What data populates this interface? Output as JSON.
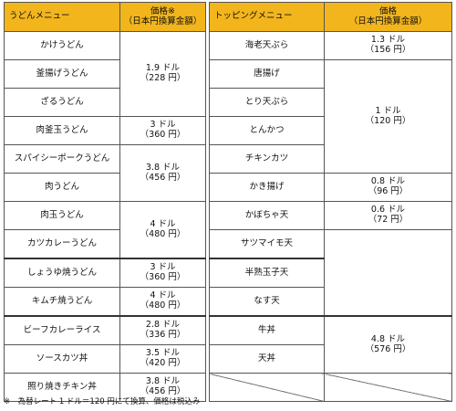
{
  "headers": {
    "udon_menu": "うどんメニュー",
    "price": "価格※",
    "price_sub": "（日本円換算金額）",
    "topping_menu": "トッピングメニュー",
    "topping_price": "価格",
    "topping_price_sub": "（日本円換算金額）"
  },
  "udon": {
    "items": [
      "かけうどん",
      "釜揚げうどん",
      "ざるうどん",
      "肉釜玉うどん",
      "スパイシーポークうどん",
      "肉うどん",
      "肉玉うどん",
      "カツカレーうどん",
      "しょうゆ焼うどん",
      "キムチ焼うどん",
      "ビーフカレーライス",
      "ソースカツ丼",
      "照り焼きチキン丼"
    ],
    "prices": [
      {
        "usd": "1.9 ドル",
        "yen": "（228 円）"
      },
      {
        "usd": "3 ドル",
        "yen": "（360 円）"
      },
      {
        "usd": "3.8 ドル",
        "yen": "（456 円）"
      },
      {
        "usd": "4 ドル",
        "yen": "（480 円）"
      },
      {
        "usd": "3 ドル",
        "yen": "（360 円）"
      },
      {
        "usd": "4 ドル",
        "yen": "（480 円）"
      },
      {
        "usd": "2.8 ドル",
        "yen": "（336 円）"
      },
      {
        "usd": "3.5 ドル",
        "yen": "（420 円）"
      },
      {
        "usd": "3.8 ドル",
        "yen": "（456 円）"
      }
    ]
  },
  "topping": {
    "items": [
      "海老天ぷら",
      "唐揚げ",
      "とり天ぷら",
      "とんかつ",
      "チキンカツ",
      "かき揚げ",
      "かぼちゃ天",
      "サツマイモ天",
      "半熟玉子天",
      "なす天",
      "牛丼",
      "天丼"
    ],
    "prices": [
      {
        "usd": "1.3 ドル",
        "yen": "（156 円）"
      },
      {
        "usd": "1 ドル",
        "yen": "（120 円）"
      },
      {
        "usd": "0.8 ドル",
        "yen": "（96 円）"
      },
      {
        "usd": "0.6 ドル",
        "yen": "（72 円）"
      },
      {
        "usd": "4.8 ドル",
        "yen": "（576 円）"
      }
    ]
  },
  "footnote": "※　為替レート 1 ドル＝120 円にて換算、価格は税込み",
  "colors": {
    "header_bg": "#f2b51c",
    "border": "#555555"
  }
}
